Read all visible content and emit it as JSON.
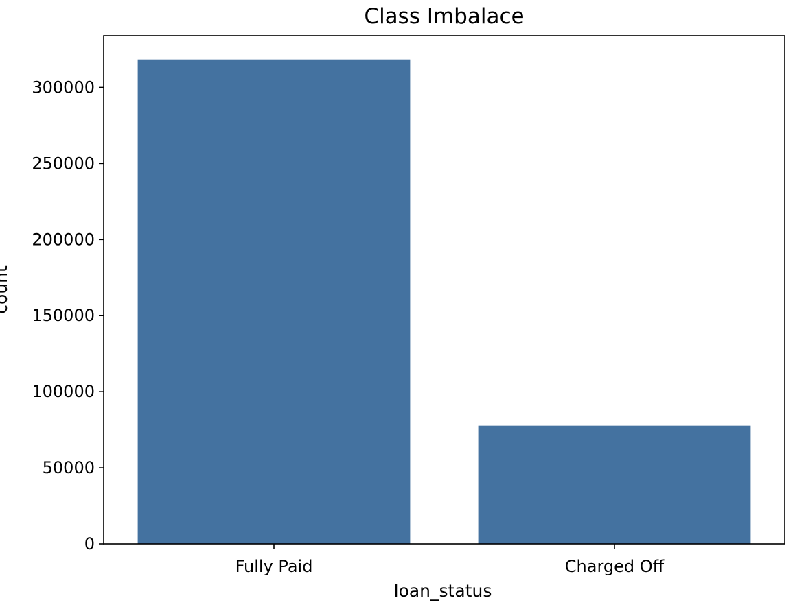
{
  "chart_data": {
    "type": "bar",
    "title": "Class Imbalace",
    "xlabel": "loan_status",
    "ylabel": "count",
    "categories": [
      "Fully Paid",
      "Charged Off"
    ],
    "values": [
      318357,
      77673
    ],
    "ylim": [
      0,
      334000
    ],
    "yticks": [
      0,
      50000,
      100000,
      150000,
      200000,
      250000,
      300000
    ],
    "ytick_labels": [
      "0",
      "50000",
      "100000",
      "150000",
      "200000",
      "250000",
      "300000"
    ],
    "bar_color": "#4472a0",
    "grid": false,
    "legend": "none"
  }
}
